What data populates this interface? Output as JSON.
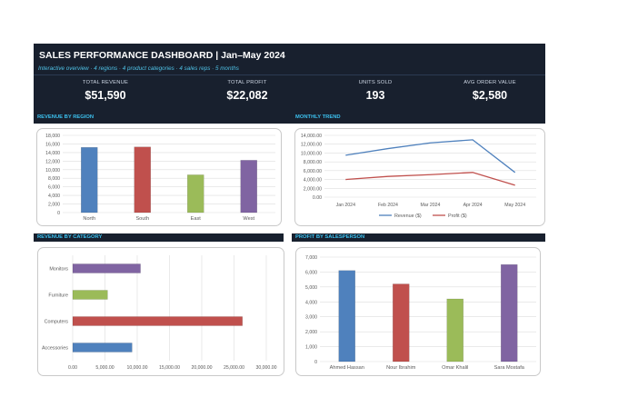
{
  "header": {
    "title": "SALES PERFORMANCE DASHBOARD  |  Jan–May 2024",
    "subtitle": "Interactive overview · 4 regions · 4 product categories · 4 sales reps · 5 months"
  },
  "kpis": [
    {
      "label": "TOTAL REVENUE",
      "value": "$51,590"
    },
    {
      "label": "TOTAL PROFIT",
      "value": "$22,082"
    },
    {
      "label": "UNITS SOLD",
      "value": "193"
    },
    {
      "label": "AVG ORDER VALUE",
      "value": "$2,580"
    }
  ],
  "sections": {
    "region": "REVENUE BY REGION",
    "trend": "MONTHLY TREND",
    "category": "REVENUE BY CATEGORY",
    "salesperson": "PROFIT BY SALESPERSON"
  },
  "colors": {
    "blue": "#4f81bd",
    "red": "#c0504d",
    "green": "#9bbb59",
    "purple": "#8064a2",
    "header_bg": "#18202e",
    "accent": "#3cc1ef"
  },
  "chart_data": [
    {
      "type": "bar",
      "title": "REVENUE BY REGION",
      "categories": [
        "North",
        "South",
        "East",
        "West"
      ],
      "values": [
        15200,
        15300,
        8800,
        12200
      ],
      "colors": [
        "#4f81bd",
        "#c0504d",
        "#9bbb59",
        "#8064a2"
      ],
      "ylim": [
        0,
        18000
      ],
      "yticks": [
        "0",
        "2,000",
        "4,000",
        "6,000",
        "8,000",
        "10,000",
        "12,000",
        "14,000",
        "16,000",
        "18,000"
      ],
      "grid": true
    },
    {
      "type": "line",
      "title": "MONTHLY TREND",
      "x": [
        "Jan 2024",
        "Feb 2024",
        "Mar 2024",
        "Apr 2024",
        "May 2024"
      ],
      "ylim": [
        0,
        14000
      ],
      "yticks": [
        "0.00",
        "2,000.00",
        "4,000.00",
        "6,000.00",
        "8,000.00",
        "10,000.00",
        "12,000.00",
        "14,000.00"
      ],
      "series": [
        {
          "name": "Revenue ($)",
          "values": [
            9500,
            11000,
            12300,
            13000,
            5600
          ],
          "color": "#4f81bd"
        },
        {
          "name": "Profit ($)",
          "values": [
            4000,
            4700,
            5100,
            5600,
            2700
          ],
          "color": "#c0504d"
        }
      ],
      "legend": "bottom",
      "grid": true
    },
    {
      "type": "bar",
      "orientation": "horizontal",
      "title": "REVENUE BY CATEGORY",
      "categories": [
        "Accessories",
        "Computers",
        "Furniture",
        "Monitors"
      ],
      "values": [
        9200,
        26300,
        5400,
        10500
      ],
      "colors": [
        "#4f81bd",
        "#c0504d",
        "#9bbb59",
        "#8064a2"
      ],
      "xlim": [
        0,
        30000
      ],
      "xticks": [
        "0.00",
        "5,000.00",
        "10,000.00",
        "15,000.00",
        "20,000.00",
        "25,000.00",
        "30,000.00"
      ],
      "grid": true
    },
    {
      "type": "bar",
      "title": "PROFIT BY SALESPERSON",
      "categories": [
        "Ahmed Hassan",
        "Nour Ibrahim",
        "Omar Khalil",
        "Sara Mostafa"
      ],
      "values": [
        6100,
        5200,
        4200,
        6500
      ],
      "colors": [
        "#4f81bd",
        "#c0504d",
        "#9bbb59",
        "#8064a2"
      ],
      "ylim": [
        0,
        7000
      ],
      "yticks": [
        "0",
        "1,000",
        "2,000",
        "3,000",
        "4,000",
        "5,000",
        "6,000",
        "7,000"
      ],
      "grid": true
    }
  ]
}
